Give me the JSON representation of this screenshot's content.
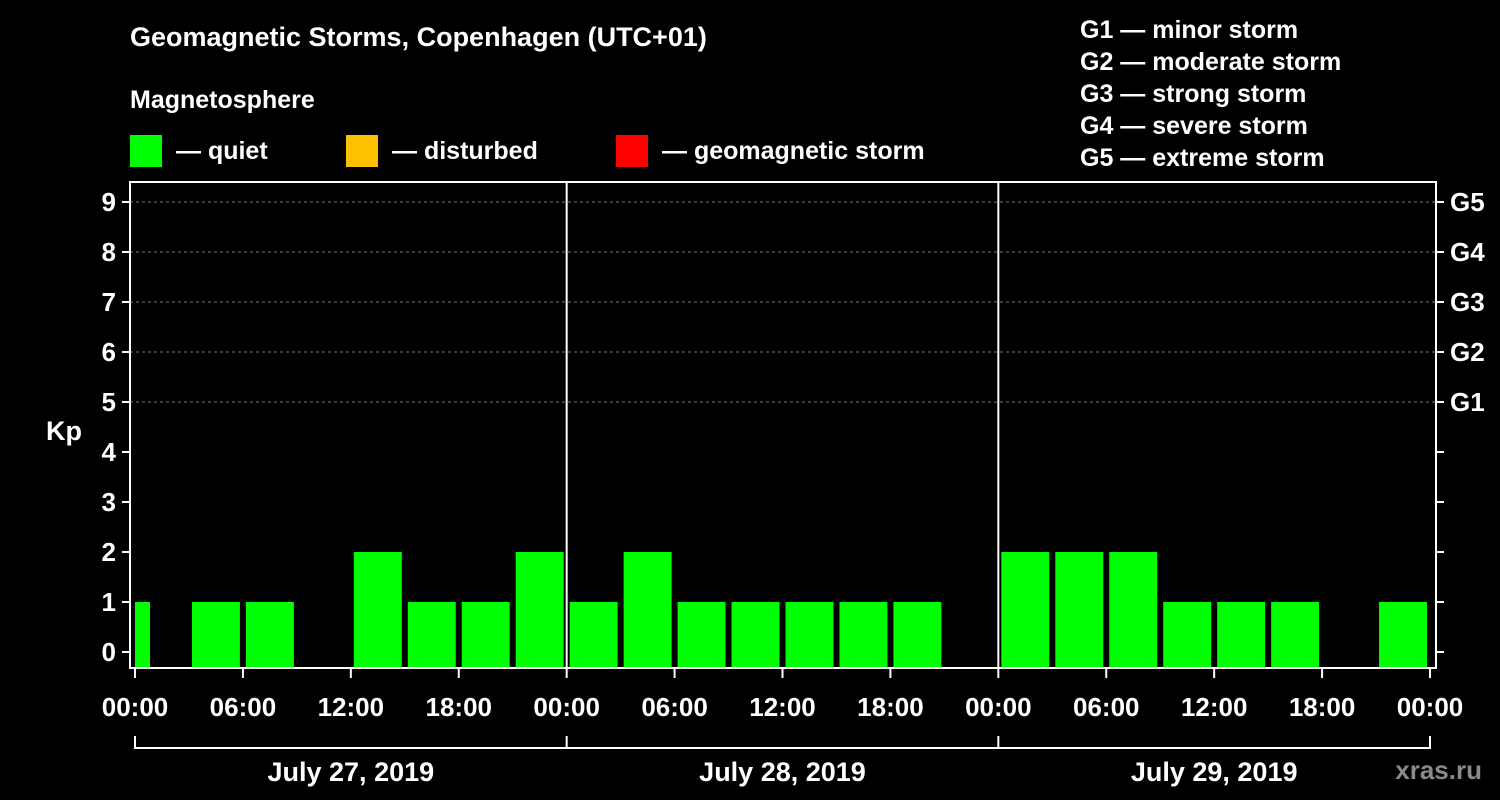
{
  "title": "Geomagnetic Storms, Copenhagen (UTC+01)",
  "magnetosphere": {
    "title": "Magnetosphere",
    "items": [
      {
        "label": "— quiet",
        "color": "#00ff00"
      },
      {
        "label": "— disturbed",
        "color": "#ffc000"
      },
      {
        "label": "— geomagnetic storm",
        "color": "#ff0000"
      }
    ]
  },
  "storm_scale": [
    "G1 — minor storm",
    "G2 — moderate storm",
    "G3 — strong storm",
    "G4 — severe storm",
    "G5 — extreme storm"
  ],
  "watermark": "xras.ru",
  "chart_data": {
    "type": "bar",
    "ylabel": "Kp",
    "ylim": [
      0,
      9
    ],
    "yticks": [
      "0",
      "1",
      "2",
      "3",
      "4",
      "5",
      "6",
      "7",
      "8",
      "9"
    ],
    "right_ticks": [
      {
        "kp": 5,
        "label": "G1"
      },
      {
        "kp": 6,
        "label": "G2"
      },
      {
        "kp": 7,
        "label": "G3"
      },
      {
        "kp": 8,
        "label": "G4"
      },
      {
        "kp": 9,
        "label": "G5"
      }
    ],
    "xticks": [
      "00:00",
      "06:00",
      "12:00",
      "18:00",
      "00:00",
      "06:00",
      "12:00",
      "18:00",
      "00:00",
      "06:00",
      "12:00",
      "18:00",
      "00:00"
    ],
    "days": [
      "July 27, 2019",
      "July 28, 2019",
      "July 29, 2019"
    ],
    "bar_color": "#00ff00",
    "series": [
      {
        "values": [
          1,
          1,
          1,
          0,
          2,
          1,
          1,
          2,
          1,
          2,
          1,
          1,
          1,
          1,
          1,
          0,
          2,
          2,
          2,
          1,
          1,
          1,
          0,
          1
        ]
      }
    ]
  }
}
